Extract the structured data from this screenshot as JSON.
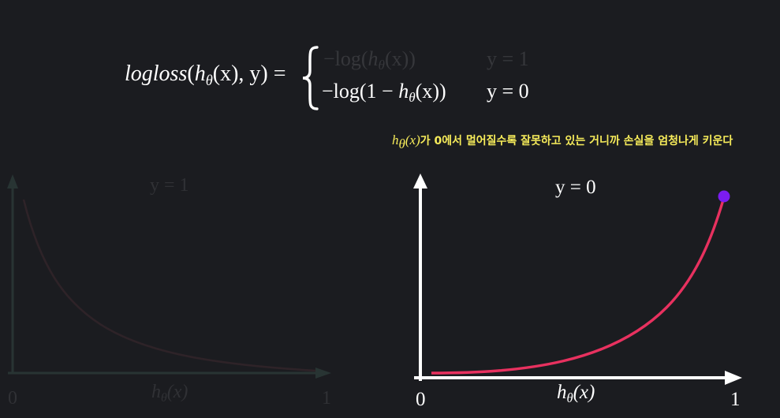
{
  "formula": {
    "lhs_name": "logloss",
    "lhs_h": "h",
    "lhs_theta": "θ",
    "lhs_rest": "(x), y) =",
    "case1_expr": "−log(",
    "case1_h": "h",
    "case1_theta": "θ",
    "case1_end": "(x))",
    "case1_cond": "y = 1",
    "case2_expr": "−log(1 − ",
    "case2_h": "h",
    "case2_theta": "θ",
    "case2_end": "(x))",
    "case2_cond": "y = 0"
  },
  "annotation": {
    "math_h": "h",
    "math_theta": "θ",
    "math_rest": "(x)",
    "text": "가 0에서 멀어질수록 잘못하고 있는 거니까 손실을 엄청나게 키운다"
  },
  "left_graph": {
    "title": "y = 1",
    "x_axis_label_h": "h",
    "x_axis_label_theta": "θ",
    "x_axis_label_rest": "(x)",
    "x_min_label": "0",
    "x_max_label": "1"
  },
  "right_graph": {
    "title": "y = 0",
    "x_axis_label_h": "h",
    "x_axis_label_theta": "θ",
    "x_axis_label_rest": "(x)",
    "x_min_label": "0",
    "x_max_label": "1"
  },
  "colors": {
    "background": "#1b1c20",
    "curve": "#e8315f",
    "marker": "#7b1cf0",
    "annotation": "#f7ec5a",
    "dim": "#3a3c40"
  }
}
